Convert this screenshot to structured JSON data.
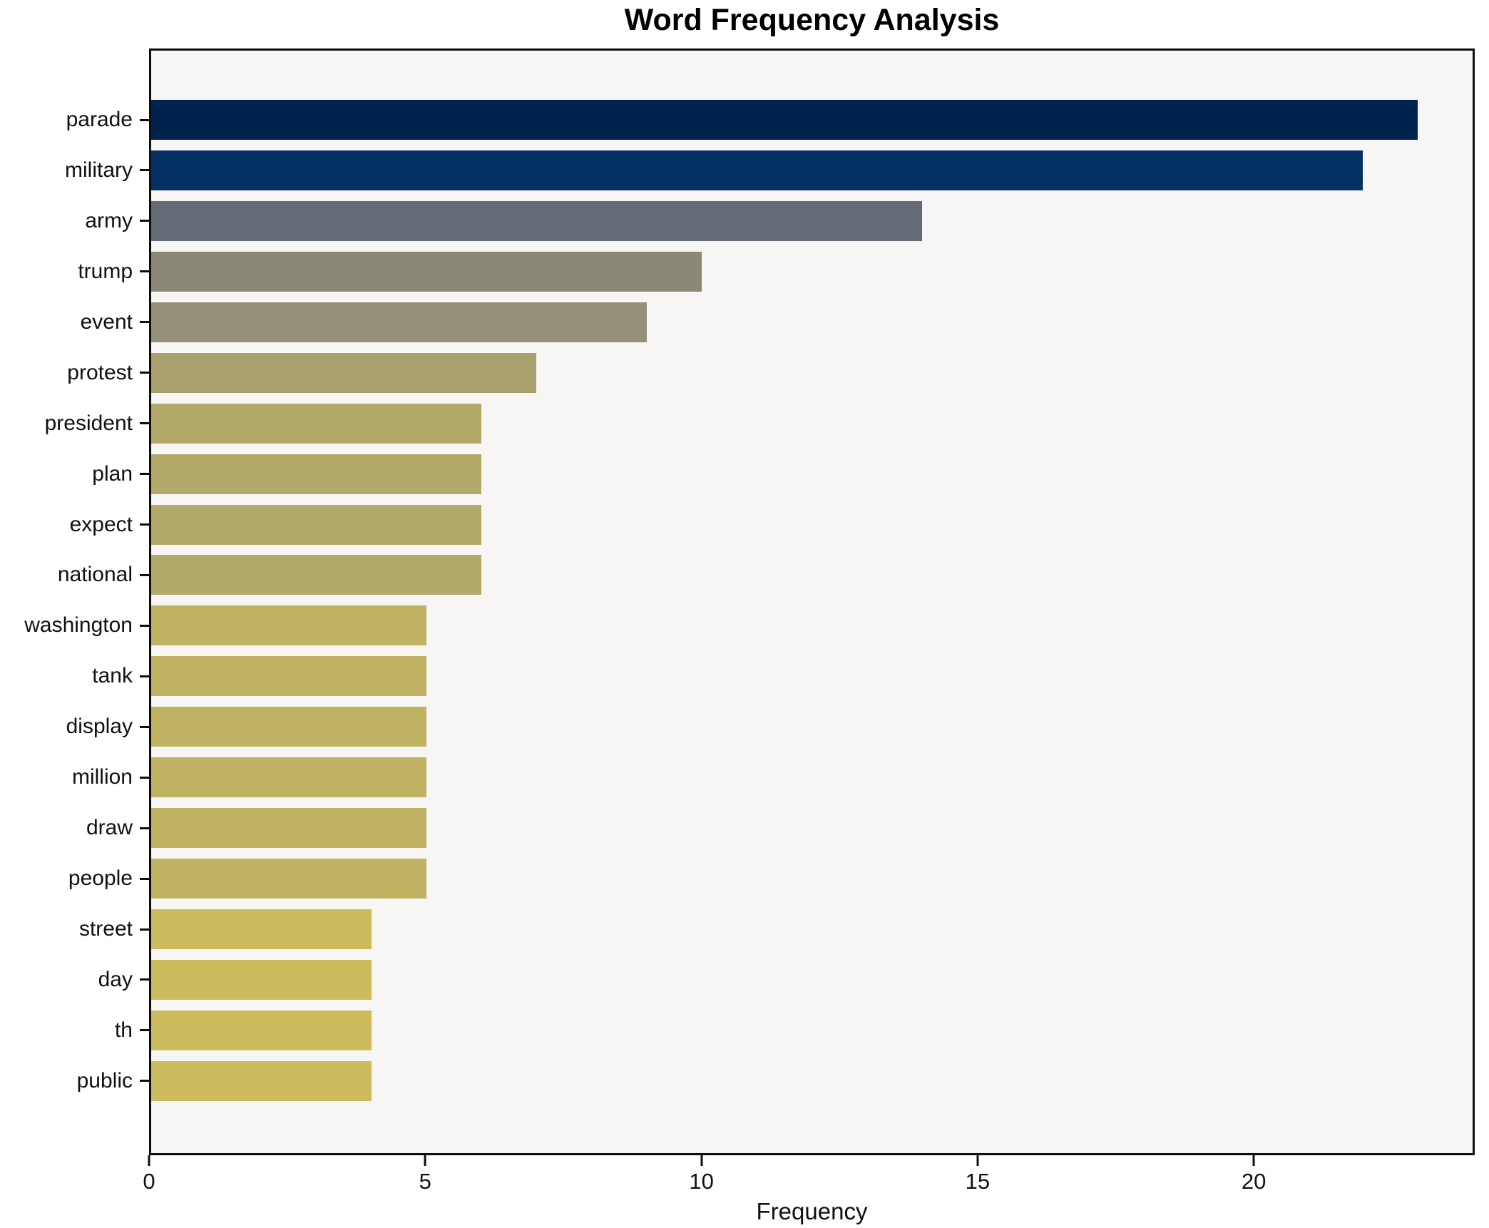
{
  "chart_data": {
    "type": "bar",
    "orientation": "horizontal",
    "title": "Word Frequency Analysis",
    "xlabel": "Frequency",
    "ylabel": "",
    "categories": [
      "parade",
      "military",
      "army",
      "trump",
      "event",
      "protest",
      "president",
      "plan",
      "expect",
      "national",
      "washington",
      "tank",
      "display",
      "million",
      "draw",
      "people",
      "street",
      "day",
      "th",
      "public"
    ],
    "values": [
      23,
      22,
      14,
      10,
      9,
      7,
      6,
      6,
      6,
      6,
      5,
      5,
      5,
      5,
      5,
      5,
      4,
      4,
      4,
      4
    ],
    "bar_colors": [
      "#00234e",
      "#043064",
      "#646a76",
      "#8b8976",
      "#959178",
      "#a9a06e",
      "#b2a96a",
      "#b2a96a",
      "#b2a96a",
      "#b2a96a",
      "#c0b263",
      "#c0b263",
      "#c0b263",
      "#c0b263",
      "#c0b263",
      "#c0b263",
      "#cdbc5e",
      "#cdbc5e",
      "#cdbc5e",
      "#cdbc5e"
    ],
    "xlim": [
      0,
      24
    ],
    "x_ticks": [
      0,
      5,
      10,
      15,
      20
    ],
    "grid": false,
    "legend": "none",
    "plot_bg": "#f7f6f5",
    "figure_bg": "#ffffff",
    "spine_color": "#0e0e0e"
  }
}
